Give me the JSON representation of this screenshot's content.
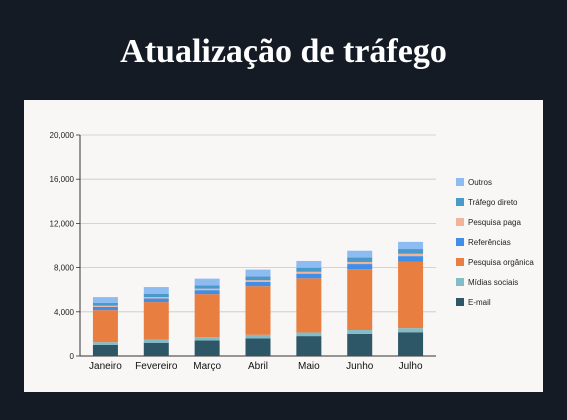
{
  "page": {
    "title": "Atualização de tráfego"
  },
  "chart_data": {
    "type": "bar",
    "stacked": true,
    "categories": [
      "Janeiro",
      "Fevereiro",
      "Março",
      "Abril",
      "Maio",
      "Junho",
      "Julho"
    ],
    "ylim": [
      0,
      20000
    ],
    "yticks": [
      "0",
      "4,000",
      "8,000",
      "12,000",
      "16,000",
      "20,000"
    ],
    "ytick_values": [
      0,
      4000,
      8000,
      12000,
      16000,
      20000
    ],
    "grid": true,
    "legend_position": "right",
    "series": [
      {
        "name": "E-mail",
        "color": "#2d5667",
        "values": [
          1000,
          1200,
          1400,
          1600,
          1800,
          2000,
          2150
        ]
      },
      {
        "name": "Mídias sociais",
        "color": "#83bcc9",
        "values": [
          250,
          280,
          300,
          320,
          330,
          350,
          370
        ]
      },
      {
        "name": "Pesquisa orgânica",
        "color": "#e97e41",
        "values": [
          2900,
          3400,
          3900,
          4400,
          4900,
          5500,
          6000
        ]
      },
      {
        "name": "Referências",
        "color": "#3f8fea",
        "values": [
          300,
          330,
          360,
          390,
          420,
          470,
          520
        ]
      },
      {
        "name": "Pesquisa paga",
        "color": "#f1b49b",
        "values": [
          100,
          120,
          130,
          150,
          170,
          190,
          210
        ]
      },
      {
        "name": "Tráfego direto",
        "color": "#4a9ac9",
        "values": [
          250,
          280,
          310,
          340,
          370,
          400,
          430
        ]
      },
      {
        "name": "Outros",
        "color": "#8dbcf2",
        "values": [
          530,
          630,
          600,
          620,
          610,
          620,
          650
        ]
      }
    ]
  }
}
